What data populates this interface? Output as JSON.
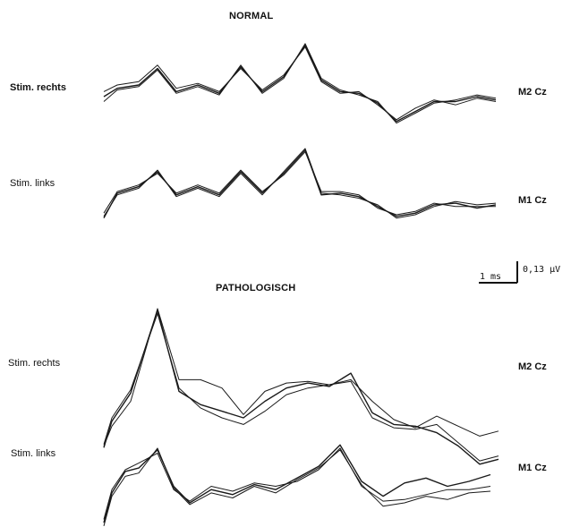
{
  "panels": {
    "normal_title": "NORMAL",
    "pathologic_title": "PATHOLOGISCH"
  },
  "scale_bar": {
    "time_label": "1 ms",
    "amplitude_label": "0,13 µV"
  },
  "chart_data": [
    {
      "type": "line",
      "title": "NORMAL",
      "xlabel": "",
      "ylabel": "",
      "traces": [
        {
          "left_label": "Stim. rechts",
          "right_label": "M2 Cz",
          "series": [
            {
              "x": [
                0,
                0.5,
                1.3,
                2.0,
                2.7,
                3.5,
                4.3,
                5.1,
                5.9,
                6.7,
                7.5,
                8.1,
                8.8,
                9.5,
                10.2,
                10.9,
                11.6,
                12.3,
                13.1,
                13.9,
                14.6
              ],
              "y": [
                -0.07,
                -0.02,
                0.0,
                0.1,
                -0.04,
                0.0,
                -0.05,
                0.11,
                -0.04,
                0.05,
                0.24,
                0.03,
                -0.04,
                -0.05,
                -0.11,
                -0.22,
                -0.16,
                -0.1,
                -0.1,
                -0.07,
                -0.09
              ]
            },
            {
              "x": [
                0,
                0.5,
                1.3,
                2.0,
                2.7,
                3.5,
                4.3,
                5.1,
                5.9,
                6.7,
                7.5,
                8.1,
                8.8,
                9.5,
                10.2,
                10.9,
                11.6,
                12.3,
                13.1,
                13.9,
                14.6
              ],
              "y": [
                -0.04,
                0.0,
                0.02,
                0.12,
                -0.02,
                0.01,
                -0.04,
                0.1,
                -0.03,
                0.06,
                0.23,
                0.02,
                -0.05,
                -0.04,
                -0.12,
                -0.21,
                -0.14,
                -0.09,
                -0.12,
                -0.08,
                -0.1
              ]
            },
            {
              "x": [
                0,
                0.5,
                1.3,
                2.0,
                2.7,
                3.5,
                4.3,
                5.1,
                5.9,
                6.7,
                7.5,
                8.1,
                8.8,
                9.5,
                10.2,
                10.9,
                11.6,
                12.3,
                13.1,
                13.9,
                14.6
              ],
              "y": [
                -0.1,
                -0.03,
                -0.01,
                0.09,
                -0.05,
                -0.01,
                -0.06,
                0.12,
                -0.05,
                0.04,
                0.25,
                0.04,
                -0.03,
                -0.06,
                -0.1,
                -0.23,
                -0.17,
                -0.11,
                -0.09,
                -0.06,
                -0.08
              ]
            }
          ]
        },
        {
          "left_label": "Stim. links",
          "right_label": "M1 Cz",
          "series": [
            {
              "x": [
                0,
                0.5,
                1.3,
                2.0,
                2.7,
                3.5,
                4.3,
                5.1,
                5.9,
                6.7,
                7.5,
                8.1,
                8.8,
                9.5,
                10.2,
                10.9,
                11.6,
                12.3,
                13.1,
                13.9,
                14.6
              ],
              "y": [
                -0.22,
                -0.07,
                -0.03,
                0.06,
                -0.08,
                -0.03,
                -0.08,
                0.06,
                -0.07,
                0.05,
                0.19,
                -0.08,
                -0.07,
                -0.09,
                -0.15,
                -0.21,
                -0.19,
                -0.14,
                -0.13,
                -0.16,
                -0.14
              ]
            },
            {
              "x": [
                0,
                0.5,
                1.3,
                2.0,
                2.7,
                3.5,
                4.3,
                5.1,
                5.9,
                6.7,
                7.5,
                8.1,
                8.8,
                9.5,
                10.2,
                10.9,
                11.6,
                12.3,
                13.1,
                13.9,
                14.6
              ],
              "y": [
                -0.19,
                -0.06,
                -0.02,
                0.05,
                -0.07,
                -0.02,
                -0.07,
                0.07,
                -0.06,
                0.04,
                0.18,
                -0.06,
                -0.06,
                -0.08,
                -0.16,
                -0.2,
                -0.18,
                -0.13,
                -0.15,
                -0.15,
                -0.15
              ]
            },
            {
              "x": [
                0,
                0.5,
                1.3,
                2.0,
                2.7,
                3.5,
                4.3,
                5.1,
                5.9,
                6.7,
                7.5,
                8.1,
                8.8,
                9.5,
                10.2,
                10.9,
                11.6,
                12.3,
                13.1,
                13.9,
                14.6
              ],
              "y": [
                -0.21,
                -0.08,
                -0.04,
                0.07,
                -0.09,
                -0.04,
                -0.09,
                0.05,
                -0.08,
                0.06,
                0.2,
                -0.07,
                -0.08,
                -0.1,
                -0.14,
                -0.22,
                -0.2,
                -0.15,
                -0.12,
                -0.14,
                -0.13
              ]
            }
          ]
        }
      ]
    },
    {
      "type": "line",
      "title": "PATHOLOGISCH",
      "xlabel": "",
      "ylabel": "",
      "traces": [
        {
          "left_label": "Stim. rechts",
          "right_label": "M2 Cz",
          "series": [
            {
              "x": [
                0,
                0.3,
                1.0,
                2.0,
                2.8,
                3.6,
                4.4,
                5.2,
                6.0,
                6.8,
                7.6,
                8.4,
                9.2,
                10.0,
                10.8,
                11.6,
                12.4,
                13.2,
                14.0,
                14.7
              ],
              "y": [
                -0.38,
                -0.22,
                -0.05,
                0.45,
                -0.04,
                -0.12,
                -0.16,
                -0.2,
                -0.1,
                -0.02,
                0.01,
                -0.01,
                0.07,
                -0.17,
                -0.24,
                -0.25,
                -0.29,
                -0.37,
                -0.48,
                -0.45
              ]
            },
            {
              "x": [
                0,
                0.3,
                1.0,
                2.0,
                2.8,
                3.6,
                4.4,
                5.2,
                6.0,
                6.8,
                7.6,
                8.4,
                9.2,
                10.0,
                10.8,
                11.6,
                12.4,
                13.2,
                14.0,
                14.7
              ],
              "y": [
                -0.36,
                -0.2,
                -0.03,
                0.43,
                -0.02,
                -0.14,
                -0.2,
                -0.24,
                -0.16,
                -0.06,
                -0.02,
                0.0,
                0.02,
                -0.2,
                -0.26,
                -0.27,
                -0.24,
                -0.35,
                -0.46,
                -0.43
              ]
            },
            {
              "x": [
                0,
                0.3,
                1.0,
                2.0,
                2.8,
                3.6,
                4.4,
                5.2,
                6.0,
                6.8,
                7.6,
                8.4,
                9.2,
                10.0,
                10.8,
                11.6,
                12.4,
                13.2,
                14.0,
                14.7
              ],
              "y": [
                -0.37,
                -0.25,
                -0.1,
                0.46,
                0.03,
                0.03,
                -0.02,
                -0.18,
                -0.04,
                0.01,
                0.02,
                0.0,
                0.03,
                -0.1,
                -0.21,
                -0.26,
                -0.19,
                -0.25,
                -0.31,
                -0.28
              ]
            }
          ]
        },
        {
          "left_label": "Stim. links",
          "right_label": "M1 Cz",
          "series": [
            {
              "x": [
                0,
                0.3,
                0.8,
                1.3,
                2.0,
                2.6,
                3.2,
                4.0,
                4.8,
                5.6,
                6.4,
                7.2,
                8.0,
                8.8,
                9.6,
                10.4,
                11.2,
                12.0,
                12.8,
                13.6,
                14.4
              ],
              "y": [
                -0.32,
                -0.14,
                -0.01,
                0.01,
                0.12,
                -0.1,
                -0.2,
                -0.12,
                -0.15,
                -0.09,
                -0.12,
                -0.05,
                0.02,
                0.15,
                -0.07,
                -0.16,
                -0.08,
                -0.05,
                -0.1,
                -0.07,
                -0.03
              ]
            },
            {
              "x": [
                0,
                0.3,
                0.8,
                1.3,
                2.0,
                2.6,
                3.2,
                4.0,
                4.8,
                5.6,
                6.4,
                7.2,
                8.0,
                8.8,
                9.6,
                10.4,
                11.2,
                12.0,
                12.8,
                13.6,
                14.4
              ],
              "y": [
                -0.3,
                -0.12,
                0.0,
                0.04,
                0.1,
                -0.12,
                -0.19,
                -0.1,
                -0.13,
                -0.08,
                -0.1,
                -0.07,
                0.0,
                0.13,
                -0.1,
                -0.19,
                -0.18,
                -0.15,
                -0.12,
                -0.12,
                -0.1
              ]
            },
            {
              "x": [
                0,
                0.3,
                0.8,
                1.3,
                2.0,
                2.6,
                3.2,
                4.0,
                4.8,
                5.6,
                6.4,
                7.2,
                8.0,
                8.8,
                9.6,
                10.4,
                11.2,
                12.0,
                12.8,
                13.6,
                14.4
              ],
              "y": [
                -0.34,
                -0.16,
                -0.04,
                -0.02,
                0.13,
                -0.11,
                -0.21,
                -0.14,
                -0.17,
                -0.1,
                -0.14,
                -0.06,
                0.01,
                0.12,
                -0.09,
                -0.22,
                -0.2,
                -0.16,
                -0.18,
                -0.14,
                -0.13
              ]
            }
          ]
        }
      ]
    }
  ],
  "colors": {
    "trace": "#1a1a1a",
    "background": "#ffffff"
  }
}
